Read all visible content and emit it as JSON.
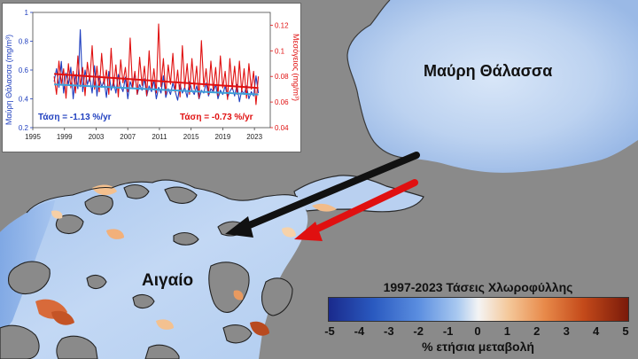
{
  "labels": {
    "black_sea": "Μαύρη Θάλασσα",
    "aegean": "Αιγαίο"
  },
  "legend": {
    "title": "1997-2023 Τάσεις Χλωροφύλλης",
    "unit": "% ετήσια μεταβολή",
    "ticks": [
      "-5",
      "-4",
      "-3",
      "-2",
      "-1",
      "0",
      "1",
      "2",
      "3",
      "4",
      "5"
    ]
  },
  "chart_data": {
    "type": "line",
    "x_ticks": [
      "1995",
      "1999",
      "2003",
      "2007",
      "2011",
      "2015",
      "2019",
      "2023"
    ],
    "xlim": [
      1995,
      2025
    ],
    "left_axis": {
      "label": "Μαύρη Θάλασσα (mg/m³)",
      "ticks": [
        "0.2",
        "0.4",
        "0.6",
        "0.8",
        "1"
      ],
      "ylim": [
        0.2,
        1.0
      ],
      "color": "#1f3fbf"
    },
    "right_axis": {
      "label": "Μεσόγειος (mg/m³)",
      "ticks": [
        "0.04",
        "0.06",
        "0.08",
        "0.1",
        "0.12"
      ],
      "ylim": [
        0.04,
        0.13
      ],
      "color": "#e01010"
    },
    "series": [
      {
        "axis": "left",
        "color": "#1f3fbf",
        "x": [
          1997.7,
          1998.0,
          1998.3,
          1998.6,
          1998.9,
          1999.2,
          1999.5,
          1999.8,
          2000.1,
          2000.4,
          2000.7,
          2001.0,
          2001.3,
          2001.6,
          2001.9,
          2002.2,
          2002.5,
          2002.8,
          2003.1,
          2003.4,
          2003.7,
          2004.0,
          2004.3,
          2004.6,
          2004.9,
          2005.2,
          2005.5,
          2005.8,
          2006.1,
          2006.4,
          2006.7,
          2007.0,
          2007.3,
          2007.6,
          2007.9,
          2008.2,
          2008.5,
          2008.8,
          2009.1,
          2009.4,
          2009.7,
          2010.0,
          2010.3,
          2010.6,
          2010.9,
          2011.2,
          2011.5,
          2011.8,
          2012.1,
          2012.4,
          2012.7,
          2013.0,
          2013.3,
          2013.6,
          2013.9,
          2014.2,
          2014.5,
          2014.8,
          2015.1,
          2015.4,
          2015.7,
          2016.0,
          2016.3,
          2016.6,
          2016.9,
          2017.2,
          2017.5,
          2017.8,
          2018.1,
          2018.4,
          2018.7,
          2019.0,
          2019.3,
          2019.6,
          2019.9,
          2020.2,
          2020.5,
          2020.8,
          2021.1,
          2021.4,
          2021.7,
          2022.0,
          2022.3,
          2022.6,
          2022.9,
          2023.2,
          2023.5
        ],
        "y": [
          0.52,
          0.61,
          0.48,
          0.66,
          0.44,
          0.58,
          0.5,
          0.62,
          0.4,
          0.57,
          0.47,
          0.88,
          0.45,
          0.6,
          0.5,
          0.55,
          0.44,
          0.63,
          0.42,
          0.56,
          0.48,
          0.53,
          0.41,
          0.59,
          0.46,
          0.52,
          0.44,
          0.57,
          0.49,
          0.45,
          0.55,
          0.4,
          0.52,
          0.47,
          0.58,
          0.43,
          0.5,
          0.46,
          0.54,
          0.42,
          0.49,
          0.45,
          0.53,
          0.4,
          0.48,
          0.44,
          0.56,
          0.41,
          0.47,
          0.43,
          0.51,
          0.45,
          0.39,
          0.5,
          0.44,
          0.48,
          0.41,
          0.52,
          0.46,
          0.43,
          0.49,
          0.4,
          0.46,
          0.44,
          0.51,
          0.42,
          0.47,
          0.45,
          0.5,
          0.4,
          0.46,
          0.43,
          0.49,
          0.41,
          0.45,
          0.48,
          0.42,
          0.5,
          0.38,
          0.46,
          0.43,
          0.49,
          0.4,
          0.45,
          0.42,
          0.56,
          0.44
        ]
      },
      {
        "axis": "right",
        "color": "#e01010",
        "x": [
          1997.7,
          1998.0,
          1998.3,
          1998.6,
          1998.9,
          1999.2,
          1999.5,
          1999.8,
          2000.1,
          2000.4,
          2000.7,
          2001.0,
          2001.3,
          2001.6,
          2001.9,
          2002.2,
          2002.5,
          2002.8,
          2003.1,
          2003.4,
          2003.7,
          2004.0,
          2004.3,
          2004.6,
          2004.9,
          2005.2,
          2005.5,
          2005.8,
          2006.1,
          2006.4,
          2006.7,
          2007.0,
          2007.3,
          2007.6,
          2007.9,
          2008.2,
          2008.5,
          2008.8,
          2009.1,
          2009.4,
          2009.7,
          2010.0,
          2010.3,
          2010.6,
          2010.9,
          2011.2,
          2011.5,
          2011.8,
          2012.1,
          2012.4,
          2012.7,
          2013.0,
          2013.3,
          2013.6,
          2013.9,
          2014.2,
          2014.5,
          2014.8,
          2015.1,
          2015.4,
          2015.7,
          2016.0,
          2016.3,
          2016.6,
          2016.9,
          2017.2,
          2017.5,
          2017.8,
          2018.1,
          2018.4,
          2018.7,
          2019.0,
          2019.3,
          2019.6,
          2019.9,
          2020.2,
          2020.5,
          2020.8,
          2021.1,
          2021.4,
          2021.7,
          2022.0,
          2022.3,
          2022.6,
          2022.9,
          2023.2,
          2023.5
        ],
        "y": [
          0.08,
          0.066,
          0.092,
          0.074,
          0.086,
          0.063,
          0.09,
          0.071,
          0.084,
          0.067,
          0.096,
          0.072,
          0.087,
          0.065,
          0.091,
          0.076,
          0.104,
          0.07,
          0.088,
          0.068,
          0.098,
          0.074,
          0.085,
          0.066,
          0.102,
          0.072,
          0.089,
          0.064,
          0.093,
          0.075,
          0.087,
          0.068,
          0.11,
          0.071,
          0.084,
          0.066,
          0.095,
          0.073,
          0.088,
          0.065,
          0.1,
          0.07,
          0.086,
          0.067,
          0.121,
          0.072,
          0.094,
          0.066,
          0.089,
          0.074,
          0.098,
          0.068,
          0.085,
          0.064,
          0.104,
          0.071,
          0.09,
          0.066,
          0.094,
          0.07,
          0.088,
          0.063,
          0.108,
          0.072,
          0.086,
          0.066,
          0.092,
          0.069,
          0.087,
          0.065,
          0.096,
          0.071,
          0.084,
          0.062,
          0.094,
          0.07,
          0.088,
          0.066,
          0.092,
          0.068,
          0.086,
          0.063,
          0.09,
          0.07,
          0.084,
          0.058,
          0.08
        ]
      }
    ],
    "trends": [
      {
        "axis": "left",
        "color": "#3fa0d8",
        "x": [
          1997.7,
          2023.5
        ],
        "y": [
          0.5,
          0.43
        ]
      },
      {
        "axis": "right",
        "color": "#e01010",
        "x": [
          1997.7,
          2023.5
        ],
        "y": [
          0.082,
          0.071
        ]
      }
    ],
    "annotations": {
      "left": "Τάση = -1.13 %/yr",
      "right": "Τάση = -0.73 %/yr"
    }
  }
}
